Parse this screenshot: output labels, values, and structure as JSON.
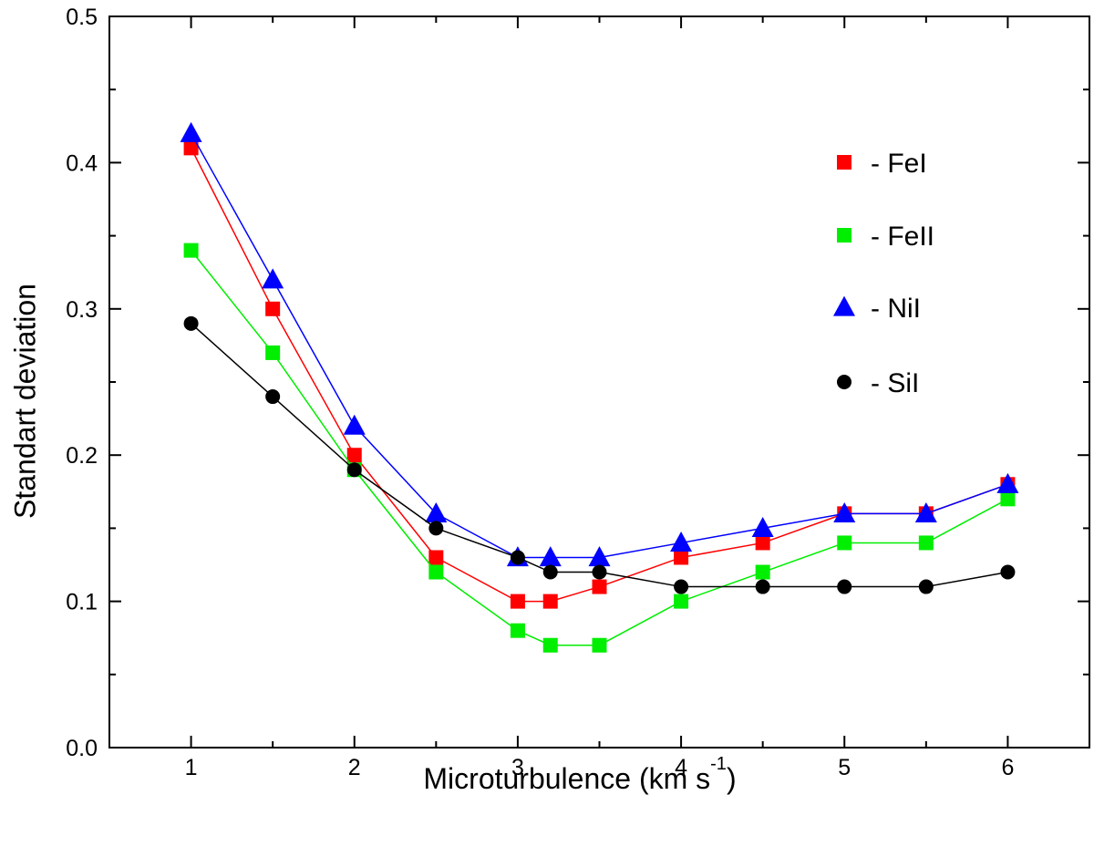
{
  "chart_data": {
    "type": "line",
    "title": "",
    "xlabel": "Microturbulence (km s",
    "xlabel_sup": "-1",
    "xlabel_close": ")",
    "ylabel": "Standart deviation",
    "xlim": [
      0.5,
      6.5
    ],
    "ylim": [
      0.0,
      0.5
    ],
    "xticks": [
      1,
      2,
      3,
      4,
      5,
      6
    ],
    "yticks": [
      0.0,
      0.1,
      0.2,
      0.3,
      0.4,
      0.5
    ],
    "xtick_labels": [
      "1",
      "2",
      "3",
      "4",
      "5",
      "6"
    ],
    "ytick_labels": [
      "0.0",
      "0.1",
      "0.2",
      "0.3",
      "0.4",
      "0.5"
    ],
    "grid": false,
    "legend_position": "right",
    "x": [
      1,
      1.5,
      2,
      2.5,
      3,
      3.2,
      3.5,
      4,
      4.5,
      5,
      5.5,
      6
    ],
    "series": [
      {
        "name": "- FeI",
        "marker": "square",
        "color": "#ff0000",
        "values": [
          0.41,
          0.3,
          0.2,
          0.13,
          0.1,
          0.1,
          0.11,
          0.13,
          0.14,
          0.16,
          0.16,
          0.18
        ]
      },
      {
        "name": "- FeII",
        "marker": "square",
        "color": "#00ee00",
        "values": [
          0.34,
          0.27,
          0.19,
          0.12,
          0.08,
          0.07,
          0.07,
          0.1,
          0.12,
          0.14,
          0.14,
          0.17
        ]
      },
      {
        "name": "- NiI",
        "marker": "triangle",
        "color": "#0000ff",
        "values": [
          0.42,
          0.32,
          0.22,
          0.16,
          0.13,
          0.13,
          0.13,
          0.14,
          0.15,
          0.16,
          0.16,
          0.18
        ]
      },
      {
        "name": "- SiI",
        "marker": "circle",
        "color": "#000000",
        "values": [
          0.29,
          0.24,
          0.19,
          0.15,
          0.13,
          0.12,
          0.12,
          0.11,
          0.11,
          0.11,
          0.11,
          0.12
        ]
      }
    ]
  }
}
